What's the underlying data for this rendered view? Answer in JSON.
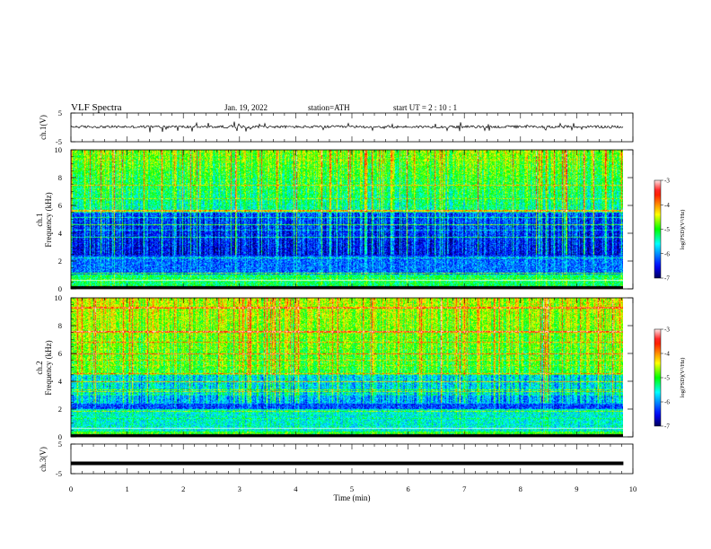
{
  "header": {
    "title": "VLF  Spectra",
    "date": "Jan. 19, 2022",
    "station": "station=ATH",
    "start": "start  UT  =   2  : 10 : 1"
  },
  "chart_data": [
    {
      "type": "line",
      "panel": "ch1-waveform",
      "ylabel": "ch.1(V)",
      "ylim": [
        -5,
        5
      ],
      "yticks": [
        "5",
        "-5"
      ],
      "baseline": 0.2,
      "xlim": [
        0,
        10
      ]
    },
    {
      "type": "heatmap",
      "panel": "ch1-spectrogram",
      "ylabel_channel": "ch.1",
      "ylabel": "Frequency  (kHz)",
      "ylim": [
        0,
        10
      ],
      "yticks": [
        "0",
        "2",
        "4",
        "6",
        "8",
        "10"
      ],
      "colorbar": {
        "label": "log(PSD)(V²/Hz)",
        "ticks": [
          "-3",
          "-4",
          "-5",
          "-6",
          "-7"
        ],
        "range": [
          -7,
          -3
        ]
      }
    },
    {
      "type": "heatmap",
      "panel": "ch2-spectrogram",
      "ylabel_channel": "ch.2",
      "ylabel": "Frequency  (kHz)",
      "ylim": [
        0,
        10
      ],
      "yticks": [
        "0",
        "2",
        "4",
        "6",
        "8",
        "10"
      ],
      "colorbar": {
        "label": "log(PSD)(V²/Hz)",
        "ticks": [
          "-3",
          "-4",
          "-5",
          "-6",
          "-7"
        ],
        "range": [
          -7,
          -3
        ]
      }
    },
    {
      "type": "line",
      "panel": "ch3-waveform",
      "ylabel": "ch.3(V)",
      "ylim": [
        -5,
        5
      ],
      "yticks": [
        "5",
        "-5"
      ],
      "baseline": -1.5,
      "xlim": [
        0,
        10
      ]
    }
  ],
  "xaxis": {
    "label": "Time  (min)",
    "xlim": [
      0,
      10
    ],
    "ticks": [
      "0",
      "1",
      "2",
      "3",
      "4",
      "5",
      "6",
      "7",
      "8",
      "9",
      "10"
    ],
    "data_end": 9.83
  }
}
